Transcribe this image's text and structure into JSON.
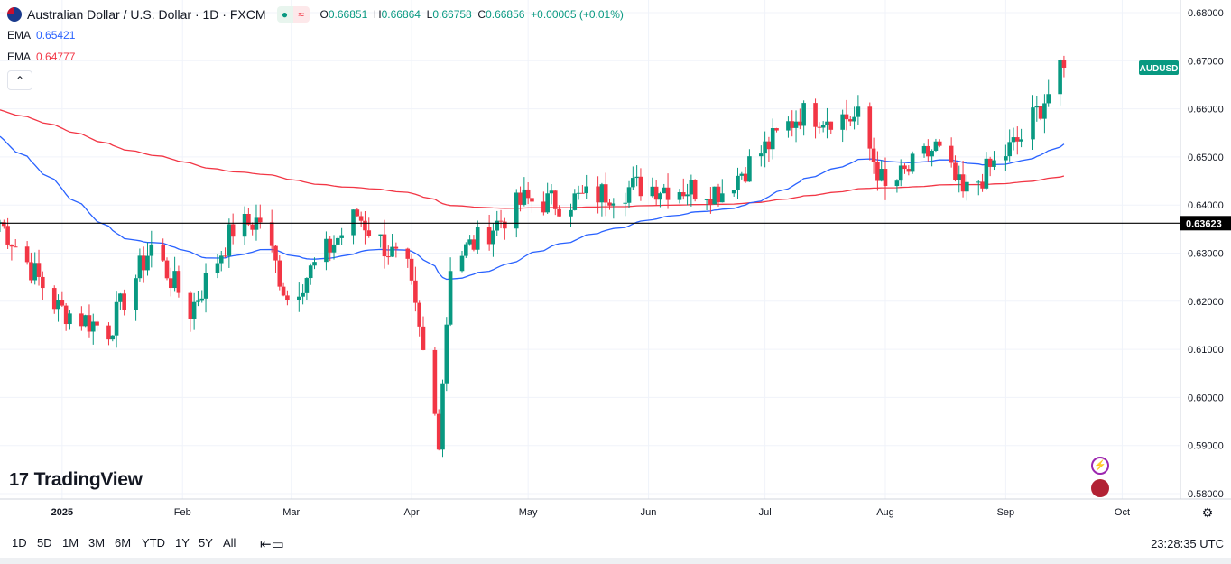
{
  "header": {
    "title": "Australian Dollar / U.S. Dollar · 1D · FXCM",
    "open_label": "O",
    "open": "0.66851",
    "high_label": "H",
    "high": "0.66864",
    "low_label": "L",
    "low": "0.66758",
    "close_label": "C",
    "close": "0.66856",
    "change": "+0.00005 (+0.01%)"
  },
  "indicators": [
    {
      "label": "EMA",
      "value": "0.65421",
      "color": "#2962ff"
    },
    {
      "label": "EMA",
      "value": "0.64777",
      "color": "#f23645"
    }
  ],
  "branding": {
    "logo": "TradingView"
  },
  "timeframes": [
    "1D",
    "5D",
    "1M",
    "3M",
    "6M",
    "YTD",
    "1Y",
    "5Y",
    "All"
  ],
  "clock": "23:28:35 UTC",
  "colors": {
    "up": "#089981",
    "down": "#f23645",
    "ema_fast": "#2962ff",
    "ema_slow": "#f23645",
    "hline": "#000000",
    "grid": "#f0f3fa"
  },
  "chart_data": {
    "type": "candlestick",
    "symbol_tag": "AUDUSD",
    "hline_value": 0.63623,
    "hline_label": "0.63623",
    "ylim": [
      0.58,
      0.68
    ],
    "y_ticks": [
      "0.68000",
      "0.67000",
      "0.66000",
      "0.65000",
      "0.64000",
      "0.63000",
      "0.62000",
      "0.61000",
      "0.60000",
      "0.59000",
      "0.58000"
    ],
    "x_ticks": [
      {
        "label": "2025",
        "date": "2025-01-01"
      },
      {
        "label": "Feb",
        "date": "2025-02-01"
      },
      {
        "label": "Mar",
        "date": "2025-03-01"
      },
      {
        "label": "Apr",
        "date": "2025-04-01"
      },
      {
        "label": "May",
        "date": "2025-05-01"
      },
      {
        "label": "Jun",
        "date": "2025-06-01"
      },
      {
        "label": "Jul",
        "date": "2025-07-01"
      },
      {
        "label": "Aug",
        "date": "2025-08-01"
      },
      {
        "label": "Sep",
        "date": "2025-09-01"
      },
      {
        "label": "Oct",
        "date": "2025-10-01"
      }
    ],
    "xlim": [
      "2024-12-16",
      "2025-10-16"
    ],
    "last_date": "2025-09-16",
    "candles_approx": [
      {
        "date": "2024-12-16",
        "close": 0.6365
      },
      {
        "date": "2024-12-31",
        "close": 0.6185
      },
      {
        "date": "2025-01-13",
        "close": 0.614
      },
      {
        "date": "2025-01-24",
        "close": 0.6315
      },
      {
        "date": "2025-02-03",
        "close": 0.618
      },
      {
        "date": "2025-02-14",
        "close": 0.635
      },
      {
        "date": "2025-02-21",
        "close": 0.637
      },
      {
        "date": "2025-02-28",
        "close": 0.6205
      },
      {
        "date": "2025-03-18",
        "close": 0.638
      },
      {
        "date": "2025-03-31",
        "close": 0.626
      },
      {
        "date": "2025-04-08",
        "close": 0.592
      },
      {
        "date": "2025-04-11",
        "close": 0.628
      },
      {
        "date": "2025-04-30",
        "close": 0.641
      },
      {
        "date": "2025-05-09",
        "close": 0.6405
      },
      {
        "date": "2025-05-30",
        "close": 0.644
      },
      {
        "date": "2025-06-20",
        "close": 0.643
      },
      {
        "date": "2025-07-10",
        "close": 0.659
      },
      {
        "date": "2025-07-25",
        "close": 0.658
      },
      {
        "date": "2025-08-01",
        "close": 0.643
      },
      {
        "date": "2025-08-14",
        "close": 0.652
      },
      {
        "date": "2025-08-21",
        "close": 0.642
      },
      {
        "date": "2025-09-05",
        "close": 0.654
      },
      {
        "date": "2025-09-16",
        "close": 0.66856
      }
    ]
  }
}
